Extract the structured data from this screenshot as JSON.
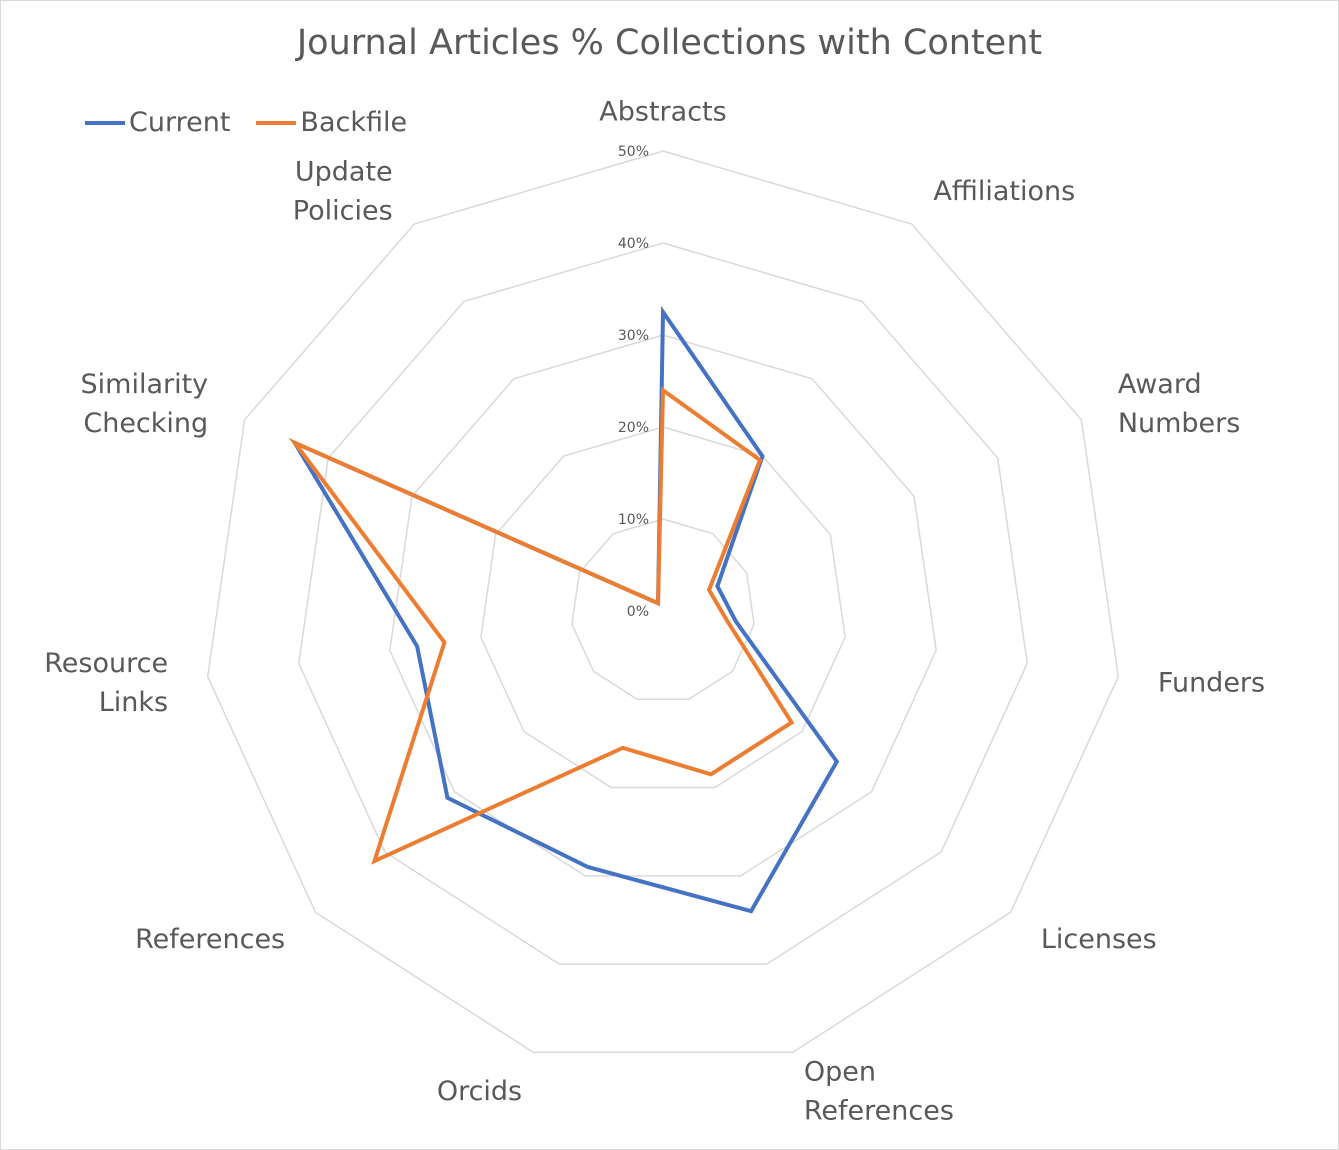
{
  "chart_data": {
    "type": "radar",
    "title": "Journal Articles % Collections with Content",
    "categories": [
      "Abstracts",
      "Affiliations",
      "Award Numbers",
      "Funders",
      "Licenses",
      "Open References",
      "Orcids",
      "References",
      "Resource Links",
      "Similarity Checking",
      "Update Policies"
    ],
    "category_lines": [
      [
        "Abstracts"
      ],
      [
        "Affiliations"
      ],
      [
        "Award",
        "Numbers"
      ],
      [
        "Funders"
      ],
      [
        "Licenses"
      ],
      [
        "Open",
        "References"
      ],
      [
        "Orcids"
      ],
      [
        "References"
      ],
      [
        "Resource",
        "Links"
      ],
      [
        "Similarity",
        "Checking"
      ],
      [
        "Update",
        "Policies"
      ]
    ],
    "series": [
      {
        "name": "Current",
        "color": "#4472c4",
        "values": [
          32.5,
          20,
          6.5,
          8,
          25,
          34,
          29,
          31,
          27,
          44,
          1
        ]
      },
      {
        "name": "Backfile",
        "color": "#ed7d31",
        "values": [
          24,
          19.5,
          5.5,
          7,
          18.5,
          18.5,
          15.5,
          41.5,
          24,
          44,
          1
        ]
      }
    ],
    "rlim": [
      0,
      50
    ],
    "tick_labels": [
      "0%",
      "10%",
      "20%",
      "30%",
      "40%",
      "50%"
    ],
    "grid": true,
    "legend_position": "top-left"
  }
}
